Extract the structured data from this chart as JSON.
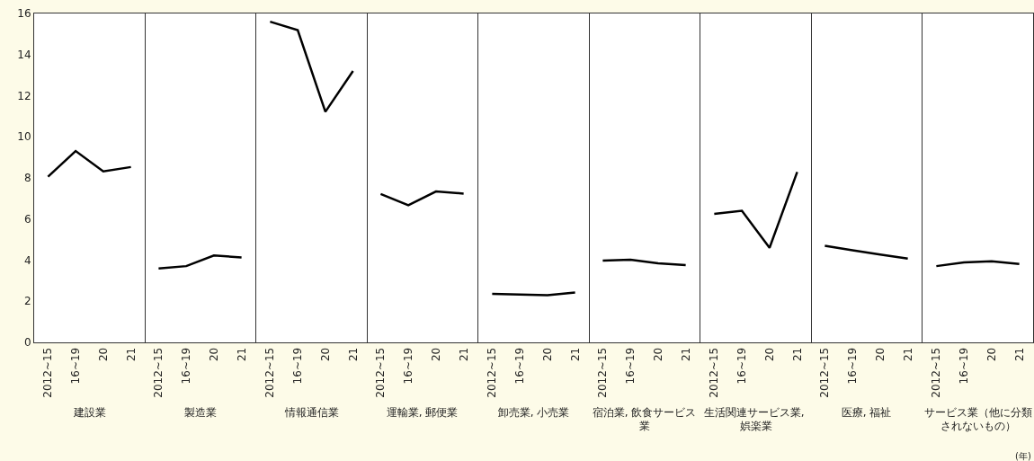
{
  "chart_data": [
    {
      "type": "line",
      "xlabel": "建設業",
      "categories": [
        "2012~15",
        "16~19",
        "20",
        "21"
      ],
      "values": [
        8.06,
        9.31,
        8.32,
        8.53
      ],
      "color": "#000000",
      "ylim": [
        0,
        16
      ],
      "yticks": [
        0,
        2,
        4,
        6,
        8,
        10,
        12,
        14,
        16
      ]
    },
    {
      "type": "line",
      "xlabel": "製造業",
      "categories": [
        "2012~15",
        "16~19",
        "20",
        "21"
      ],
      "values": [
        3.6,
        3.71,
        4.23,
        4.13
      ],
      "color": "#000000",
      "ylim": [
        0,
        16
      ],
      "yticks": [
        0,
        2,
        4,
        6,
        8,
        10,
        12,
        14,
        16
      ],
      "tick_labels": "x"
    },
    {
      "type": "line",
      "xlabel": "情報通信業",
      "categories": [
        "2012~15",
        "16~19",
        "20",
        "21"
      ],
      "values": [
        15.6,
        15.19,
        11.22,
        13.2
      ],
      "color": "#000000",
      "ylim": [
        0,
        16
      ],
      "yticks": [
        0,
        2,
        4,
        6,
        8,
        10,
        12,
        14,
        16
      ],
      "tick_labels": "x"
    },
    {
      "type": "line",
      "xlabel": "運輸業, 郵便業",
      "categories": [
        "2012~15",
        "16~19",
        "20",
        "21"
      ],
      "values": [
        7.22,
        6.67,
        7.34,
        7.24
      ],
      "color": "#000000",
      "ylim": [
        0,
        16
      ],
      "yticks": [
        0,
        2,
        4,
        6,
        8,
        10,
        12,
        14,
        16
      ],
      "tick_labels": "x"
    },
    {
      "type": "line",
      "xlabel": "卸売業, 小売業",
      "categories": [
        "2012~15",
        "16~19",
        "20",
        "21"
      ],
      "values": [
        2.36,
        2.33,
        2.3,
        2.43
      ],
      "color": "#000000",
      "ylim": [
        0,
        16
      ],
      "yticks": [
        0,
        2,
        4,
        6,
        8,
        10,
        12,
        14,
        16
      ],
      "tick_labels": "x"
    },
    {
      "type": "line",
      "xlabel": "宿泊業, 飲食サービス業",
      "categories": [
        "2012~15",
        "16~19",
        "20",
        "21"
      ],
      "values": [
        3.98,
        4.02,
        3.85,
        3.76
      ],
      "color": "#000000",
      "ylim": [
        0,
        16
      ],
      "yticks": [
        0,
        2,
        4,
        6,
        8,
        10,
        12,
        14,
        16
      ],
      "tick_labels": "x"
    },
    {
      "type": "line",
      "xlabel": "生活関連サービス業, 娯楽業",
      "categories": [
        "2012~15",
        "16~19",
        "20",
        "21"
      ],
      "values": [
        6.25,
        6.4,
        4.6,
        8.29
      ],
      "color": "#000000",
      "ylim": [
        0,
        16
      ],
      "yticks": [
        0,
        2,
        4,
        6,
        8,
        10,
        12,
        14,
        16
      ],
      "tick_labels": "x"
    },
    {
      "type": "line",
      "xlabel": "医療, 福祉",
      "categories": [
        "2012~15",
        "16~19",
        "20",
        "21"
      ],
      "values": [
        4.7,
        4.48,
        4.27,
        4.08
      ],
      "color": "#000000",
      "ylim": [
        0,
        16
      ],
      "yticks": [
        0,
        2,
        4,
        6,
        8,
        10,
        12,
        14,
        16
      ],
      "tick_labels": "x"
    },
    {
      "type": "line",
      "xlabel": "サービス業（他に分類されないもの）",
      "categories": [
        "2012~15",
        "16~19",
        "20",
        "21"
      ],
      "values": [
        3.71,
        3.89,
        3.95,
        3.81
      ],
      "color": "#000000",
      "ylim": [
        0,
        16
      ],
      "yticks": [
        0,
        2,
        4,
        6,
        8,
        10,
        12,
        14,
        16
      ],
      "tick_labels": "x",
      "annotations": [
        "(年)"
      ]
    }
  ]
}
